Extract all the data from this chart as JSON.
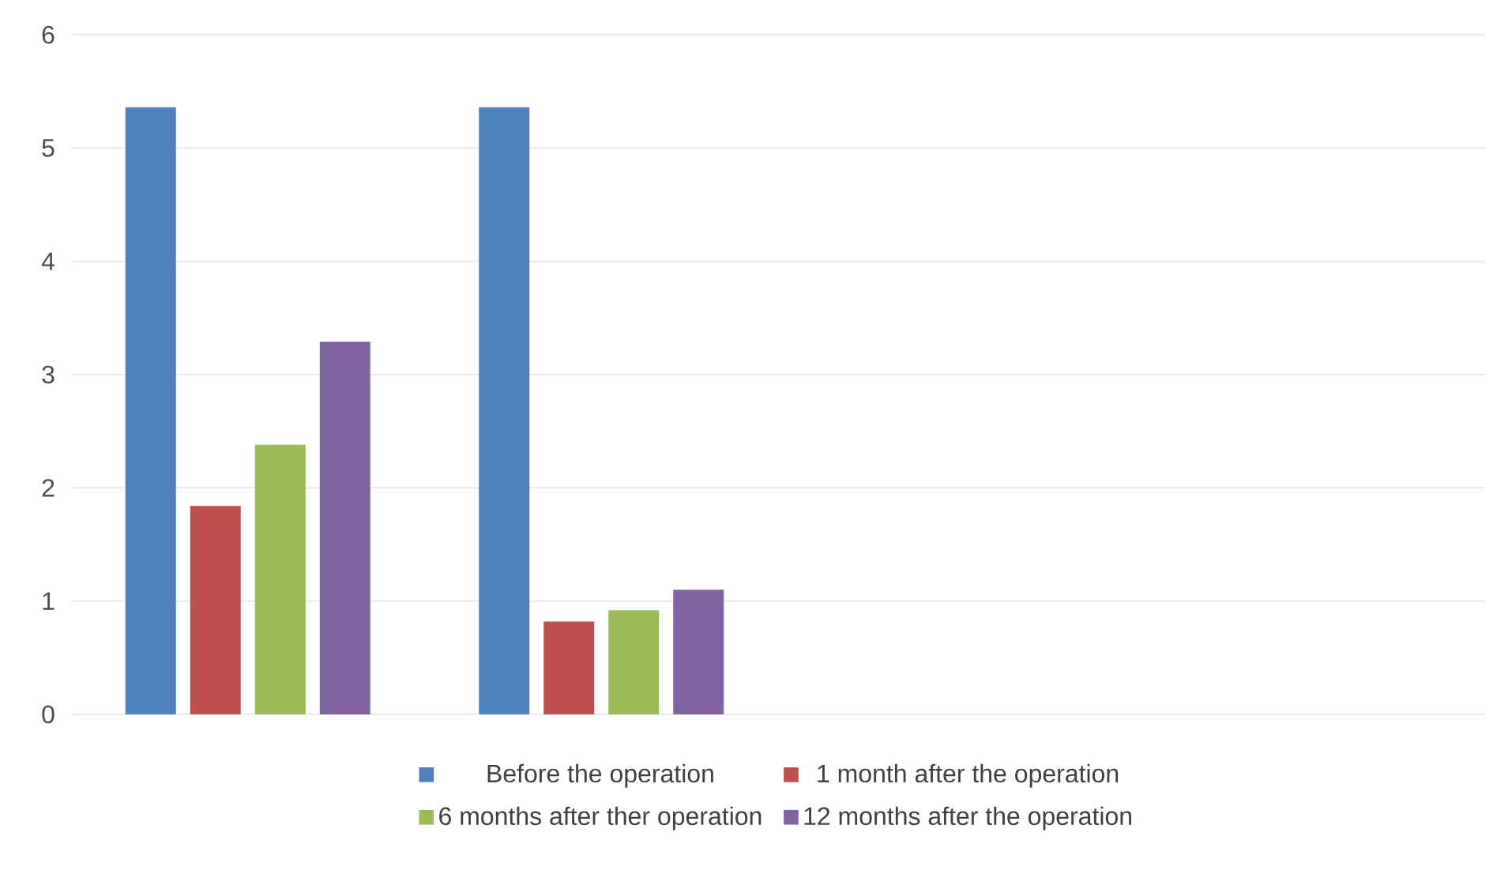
{
  "chart_data": {
    "type": "bar",
    "categories": [
      null,
      null,
      null,
      null
    ],
    "series": [
      {
        "name": "Before the operation",
        "color": "#4f81bd",
        "values": [
          5.36,
          5.36,
          null,
          null
        ]
      },
      {
        "name": "1 month after the operation",
        "color": "#c0504d",
        "values": [
          1.84,
          0.82,
          null,
          null
        ]
      },
      {
        "name": "6 months after ther operation",
        "color": "#9bbb59",
        "values": [
          2.38,
          0.92,
          null,
          null
        ]
      },
      {
        "name": "12 months after the operation",
        "color": "#8064a2",
        "values": [
          3.29,
          1.1,
          null,
          null
        ]
      }
    ],
    "ylim": [
      0,
      6
    ],
    "yticks": [
      0,
      1,
      2,
      3,
      4,
      5,
      6
    ],
    "grid": "y",
    "legend": "bottom",
    "tick_labels": "y"
  }
}
